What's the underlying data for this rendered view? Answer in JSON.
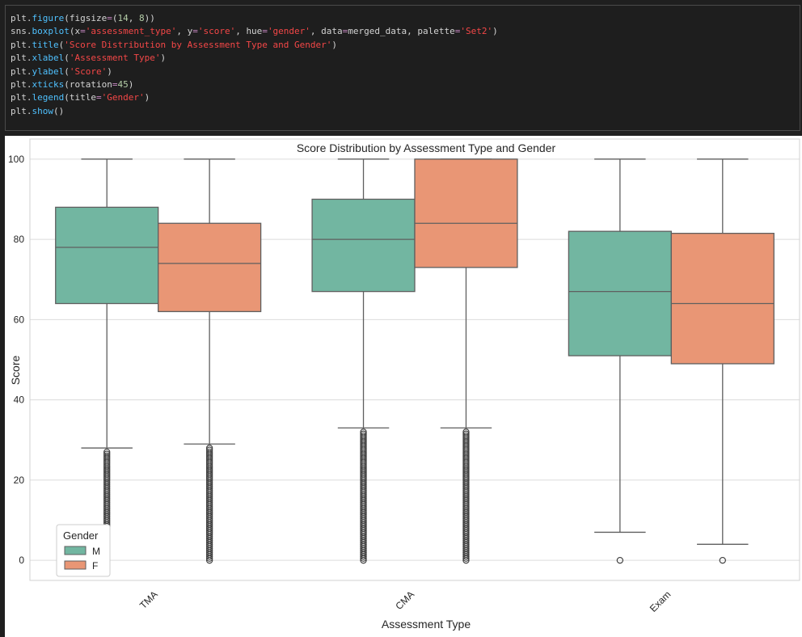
{
  "code_cell": {
    "lines": [
      [
        {
          "t": "plt.",
          "c": "plain"
        },
        {
          "t": "figure",
          "c": "func"
        },
        {
          "t": "(",
          "c": "plain"
        },
        {
          "t": "figsize",
          "c": "plain"
        },
        {
          "t": "=",
          "c": "op"
        },
        {
          "t": "(",
          "c": "plain"
        },
        {
          "t": "14",
          "c": "num"
        },
        {
          "t": ", ",
          "c": "plain"
        },
        {
          "t": "8",
          "c": "num"
        },
        {
          "t": "))",
          "c": "plain"
        }
      ],
      [
        {
          "t": "sns.",
          "c": "plain"
        },
        {
          "t": "boxplot",
          "c": "func"
        },
        {
          "t": "(",
          "c": "plain"
        },
        {
          "t": "x",
          "c": "plain"
        },
        {
          "t": "=",
          "c": "op"
        },
        {
          "t": "'assessment_type'",
          "c": "str"
        },
        {
          "t": ", ",
          "c": "plain"
        },
        {
          "t": "y",
          "c": "plain"
        },
        {
          "t": "=",
          "c": "op"
        },
        {
          "t": "'score'",
          "c": "str"
        },
        {
          "t": ", ",
          "c": "plain"
        },
        {
          "t": "hue",
          "c": "plain"
        },
        {
          "t": "=",
          "c": "op"
        },
        {
          "t": "'gender'",
          "c": "str"
        },
        {
          "t": ", ",
          "c": "plain"
        },
        {
          "t": "data",
          "c": "plain"
        },
        {
          "t": "=",
          "c": "op"
        },
        {
          "t": "merged_data",
          "c": "plain"
        },
        {
          "t": ", ",
          "c": "plain"
        },
        {
          "t": "palette",
          "c": "plain"
        },
        {
          "t": "=",
          "c": "op"
        },
        {
          "t": "'Set2'",
          "c": "str"
        },
        {
          "t": ")",
          "c": "plain"
        }
      ],
      [
        {
          "t": "plt.",
          "c": "plain"
        },
        {
          "t": "title",
          "c": "func"
        },
        {
          "t": "(",
          "c": "plain"
        },
        {
          "t": "'Score Distribution by Assessment Type and Gender'",
          "c": "str"
        },
        {
          "t": ")",
          "c": "plain"
        }
      ],
      [
        {
          "t": "plt.",
          "c": "plain"
        },
        {
          "t": "xlabel",
          "c": "func"
        },
        {
          "t": "(",
          "c": "plain"
        },
        {
          "t": "'Assessment Type'",
          "c": "str"
        },
        {
          "t": ")",
          "c": "plain"
        }
      ],
      [
        {
          "t": "plt.",
          "c": "plain"
        },
        {
          "t": "ylabel",
          "c": "func"
        },
        {
          "t": "(",
          "c": "plain"
        },
        {
          "t": "'Score'",
          "c": "str"
        },
        {
          "t": ")",
          "c": "plain"
        }
      ],
      [
        {
          "t": "plt.",
          "c": "plain"
        },
        {
          "t": "xticks",
          "c": "func"
        },
        {
          "t": "(",
          "c": "plain"
        },
        {
          "t": "rotation",
          "c": "plain"
        },
        {
          "t": "=",
          "c": "op"
        },
        {
          "t": "45",
          "c": "num"
        },
        {
          "t": ")",
          "c": "plain"
        }
      ],
      [
        {
          "t": "plt.",
          "c": "plain"
        },
        {
          "t": "legend",
          "c": "func"
        },
        {
          "t": "(",
          "c": "plain"
        },
        {
          "t": "title",
          "c": "plain"
        },
        {
          "t": "=",
          "c": "op"
        },
        {
          "t": "'Gender'",
          "c": "str"
        },
        {
          "t": ")",
          "c": "plain"
        }
      ],
      [
        {
          "t": "plt.",
          "c": "plain"
        },
        {
          "t": "show",
          "c": "func"
        },
        {
          "t": "()",
          "c": "plain"
        }
      ]
    ]
  },
  "chart_data": {
    "type": "boxplot",
    "title": "Score Distribution by Assessment Type and Gender",
    "xlabel": "Assessment Type",
    "ylabel": "Score",
    "ylim": [
      -5,
      105
    ],
    "yticks": [
      0,
      20,
      40,
      60,
      80,
      100
    ],
    "categories": [
      "TMA",
      "CMA",
      "Exam"
    ],
    "grid": true,
    "legend": {
      "title": "Gender",
      "placement": "lower-left"
    },
    "series": [
      {
        "name": "M",
        "color": "#72b6a1",
        "boxes": [
          {
            "category": "TMA",
            "whisker_low": 28,
            "q1": 64,
            "median": 78,
            "q3": 88,
            "whisker_high": 100,
            "outlier_min": 0,
            "outlier_max": 27
          },
          {
            "category": "CMA",
            "whisker_low": 33,
            "q1": 67,
            "median": 80,
            "q3": 90,
            "whisker_high": 100,
            "outlier_min": 0,
            "outlier_max": 32
          },
          {
            "category": "Exam",
            "whisker_low": 7,
            "q1": 51,
            "median": 67,
            "q3": 82,
            "whisker_high": 100,
            "outliers": [
              0
            ]
          }
        ]
      },
      {
        "name": "F",
        "color": "#e99675",
        "boxes": [
          {
            "category": "TMA",
            "whisker_low": 29,
            "q1": 62,
            "median": 74,
            "q3": 84,
            "whisker_high": 100,
            "outlier_min": 0,
            "outlier_max": 28
          },
          {
            "category": "CMA",
            "whisker_low": 33,
            "q1": 73,
            "median": 84,
            "q3": 100,
            "whisker_high": 100,
            "outlier_min": 0,
            "outlier_max": 32
          },
          {
            "category": "Exam",
            "whisker_low": 4,
            "q1": 49,
            "median": 64,
            "q3": 81.5,
            "whisker_high": 100,
            "outliers": [
              0
            ]
          }
        ]
      }
    ]
  }
}
